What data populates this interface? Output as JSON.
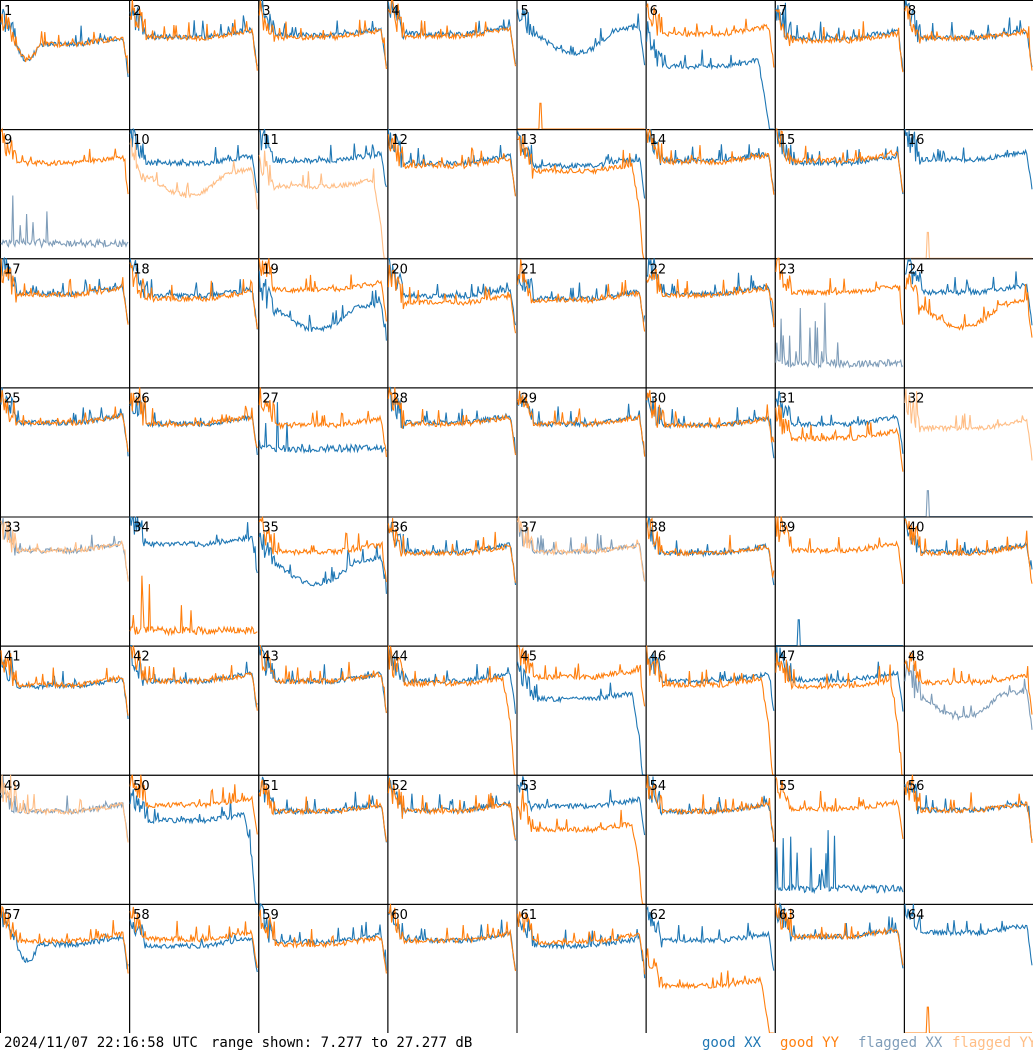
{
  "footer": {
    "timestamp": "2024/11/07 22:16:58 UTC",
    "range_text": "range shown: 7.277 to 27.277 dB",
    "legend": [
      {
        "label": "good XX",
        "color": "#1f77b4"
      },
      {
        "label": "good YY",
        "color": "#ff7f0e"
      },
      {
        "label": "flagged XX",
        "color": "#7f9db9"
      },
      {
        "label": "flagged YY",
        "color": "#ffbe86"
      }
    ]
  },
  "chart_data": {
    "type": "line",
    "grid_rows": 8,
    "grid_cols": 8,
    "y_range_db": [
      7.277,
      27.277
    ],
    "colors": {
      "good_xx": "#1f77b4",
      "good_yy": "#ff7f0e",
      "flagged_xx": "#7f9db9",
      "flagged_yy": "#ffbe86"
    },
    "panels": [
      {
        "id": "1",
        "xx": "good",
        "yy": "good",
        "xx_style": "dip",
        "yy_style": "dip",
        "xx_level": 20.4,
        "yy_level": 20.4
      },
      {
        "id": "2",
        "xx": "good",
        "yy": "good",
        "xx_style": "normal",
        "yy_style": "normal",
        "xx_level": 21.6,
        "yy_level": 21.4
      },
      {
        "id": "3",
        "xx": "good",
        "yy": "good",
        "xx_style": "normal",
        "yy_style": "normal",
        "xx_level": 21.8,
        "yy_level": 21.5
      },
      {
        "id": "4",
        "xx": "good",
        "yy": "good",
        "xx_style": "normal",
        "yy_style": "normal",
        "xx_level": 22.0,
        "yy_level": 21.7
      },
      {
        "id": "5",
        "xx": "good",
        "yy": "good",
        "xx_style": "sag",
        "yy_style": "spike",
        "xx_level": 22.0,
        "yy_level": 8.0
      },
      {
        "id": "6",
        "xx": "good",
        "yy": "good",
        "xx_style": "lowdrop",
        "yy_style": "normal",
        "xx_level": 17.0,
        "yy_level": 22.0
      },
      {
        "id": "7",
        "xx": "good",
        "yy": "good",
        "xx_style": "normal",
        "yy_style": "normal",
        "xx_level": 21.4,
        "yy_level": 21.0
      },
      {
        "id": "8",
        "xx": "good",
        "yy": "good",
        "xx_style": "normal",
        "yy_style": "normal",
        "xx_level": 21.4,
        "yy_level": 21.4
      },
      {
        "id": "9",
        "xx": "flagged",
        "yy": "good",
        "xx_style": "bursty",
        "yy_style": "normal",
        "xx_level": 9.0,
        "yy_level": 22.0
      },
      {
        "id": "10",
        "xx": "good",
        "yy": "flagged",
        "xx_style": "normal",
        "yy_style": "sag",
        "xx_level": 22.0,
        "yy_level": 20.0
      },
      {
        "id": "11",
        "xx": "good",
        "yy": "flagged",
        "xx_style": "normal",
        "yy_style": "drop",
        "xx_level": 22.4,
        "yy_level": 18.4
      },
      {
        "id": "12",
        "xx": "good",
        "yy": "good",
        "xx_style": "normal",
        "yy_style": "normal",
        "xx_level": 22.0,
        "yy_level": 21.6
      },
      {
        "id": "13",
        "xx": "good",
        "yy": "good",
        "xx_style": "normal",
        "yy_style": "drop",
        "xx_level": 21.6,
        "yy_level": 20.8
      },
      {
        "id": "14",
        "xx": "good",
        "yy": "good",
        "xx_style": "normal",
        "yy_style": "normal",
        "xx_level": 22.4,
        "yy_level": 22.2
      },
      {
        "id": "15",
        "xx": "good",
        "yy": "good",
        "xx_style": "normal",
        "yy_style": "normal",
        "xx_level": 22.0,
        "yy_level": 22.4
      },
      {
        "id": "16",
        "xx": "good",
        "yy": "flagged",
        "xx_style": "normal",
        "yy_style": "spike",
        "xx_level": 22.6,
        "yy_level": 8.0
      },
      {
        "id": "17",
        "xx": "good",
        "yy": "good",
        "xx_style": "normal",
        "yy_style": "normal",
        "xx_level": 21.8,
        "yy_level": 21.6
      },
      {
        "id": "18",
        "xx": "good",
        "yy": "good",
        "xx_style": "normal",
        "yy_style": "normal",
        "xx_level": 21.4,
        "yy_level": 21.0
      },
      {
        "id": "19",
        "xx": "good",
        "yy": "good",
        "xx_style": "sag",
        "yy_style": "normal",
        "xx_level": 19.2,
        "yy_level": 22.4
      },
      {
        "id": "20",
        "xx": "good",
        "yy": "good",
        "xx_style": "normal",
        "yy_style": "normal",
        "xx_level": 21.4,
        "yy_level": 20.4
      },
      {
        "id": "21",
        "xx": "good",
        "yy": "good",
        "xx_style": "normal",
        "yy_style": "normal",
        "xx_level": 21.0,
        "yy_level": 20.8
      },
      {
        "id": "22",
        "xx": "good",
        "yy": "good",
        "xx_style": "normal",
        "yy_style": "normal",
        "xx_level": 21.8,
        "yy_level": 21.6
      },
      {
        "id": "23",
        "xx": "flagged",
        "yy": "good",
        "xx_style": "bursty",
        "yy_style": "normal",
        "xx_level": 10.4,
        "yy_level": 22.0
      },
      {
        "id": "24",
        "xx": "good",
        "yy": "good",
        "xx_style": "normal",
        "yy_style": "sag",
        "xx_level": 22.0,
        "yy_level": 19.6
      },
      {
        "id": "25",
        "xx": "good",
        "yy": "good",
        "xx_style": "normal",
        "yy_style": "normal",
        "xx_level": 21.8,
        "yy_level": 21.8
      },
      {
        "id": "26",
        "xx": "good",
        "yy": "good",
        "xx_style": "normal",
        "yy_style": "normal",
        "xx_level": 21.6,
        "yy_level": 21.6
      },
      {
        "id": "27",
        "xx": "good",
        "yy": "good",
        "xx_style": "bursty",
        "yy_style": "normal",
        "xx_level": 17.2,
        "yy_level": 21.4
      },
      {
        "id": "28",
        "xx": "good",
        "yy": "good",
        "xx_style": "normal",
        "yy_style": "normal",
        "xx_level": 21.8,
        "yy_level": 21.6
      },
      {
        "id": "29",
        "xx": "good",
        "yy": "good",
        "xx_style": "normal",
        "yy_style": "normal",
        "xx_level": 21.6,
        "yy_level": 21.6
      },
      {
        "id": "30",
        "xx": "good",
        "yy": "good",
        "xx_style": "normal",
        "yy_style": "normal",
        "xx_level": 21.4,
        "yy_level": 21.4
      },
      {
        "id": "31",
        "xx": "good",
        "yy": "good",
        "xx_style": "normal",
        "yy_style": "normal",
        "xx_level": 21.6,
        "yy_level": 19.4
      },
      {
        "id": "32",
        "xx": "flagged",
        "yy": "flagged",
        "xx_style": "spike",
        "yy_style": "normal",
        "xx_level": 8.0,
        "yy_level": 21.0
      },
      {
        "id": "33",
        "xx": "flagged",
        "yy": "flagged",
        "xx_style": "normal",
        "yy_style": "normal",
        "xx_level": 22.0,
        "yy_level": 22.0
      },
      {
        "id": "34",
        "xx": "good",
        "yy": "good",
        "xx_style": "normal",
        "yy_style": "bursty",
        "xx_level": 23.0,
        "yy_level": 9.0
      },
      {
        "id": "35",
        "xx": "good",
        "yy": "good",
        "xx_style": "sag",
        "yy_style": "normal",
        "xx_level": 19.8,
        "yy_level": 21.8
      },
      {
        "id": "36",
        "xx": "good",
        "yy": "good",
        "xx_style": "normal",
        "yy_style": "normal",
        "xx_level": 21.8,
        "yy_level": 21.6
      },
      {
        "id": "37",
        "xx": "flagged",
        "yy": "flagged",
        "xx_style": "normal",
        "yy_style": "normal",
        "xx_level": 21.8,
        "yy_level": 21.8
      },
      {
        "id": "38",
        "xx": "good",
        "yy": "good",
        "xx_style": "normal",
        "yy_style": "normal",
        "xx_level": 21.6,
        "yy_level": 21.6
      },
      {
        "id": "39",
        "xx": "good",
        "yy": "good",
        "xx_style": "spike",
        "yy_style": "normal",
        "xx_level": 8.0,
        "yy_level": 22.0
      },
      {
        "id": "40",
        "xx": "good",
        "yy": "good",
        "xx_style": "normal",
        "yy_style": "normal",
        "xx_level": 21.8,
        "yy_level": 21.6
      },
      {
        "id": "41",
        "xx": "good",
        "yy": "good",
        "xx_style": "normal",
        "yy_style": "normal",
        "xx_level": 21.0,
        "yy_level": 21.2
      },
      {
        "id": "42",
        "xx": "good",
        "yy": "good",
        "xx_style": "normal",
        "yy_style": "normal",
        "xx_level": 21.8,
        "yy_level": 21.8
      },
      {
        "id": "43",
        "xx": "good",
        "yy": "good",
        "xx_style": "normal",
        "yy_style": "normal",
        "xx_level": 21.8,
        "yy_level": 21.8
      },
      {
        "id": "44",
        "xx": "good",
        "yy": "good",
        "xx_style": "normal",
        "yy_style": "drop",
        "xx_level": 21.8,
        "yy_level": 21.4
      },
      {
        "id": "45",
        "xx": "good",
        "yy": "good",
        "xx_style": "drop",
        "yy_style": "normal",
        "xx_level": 19.0,
        "yy_level": 22.4
      },
      {
        "id": "46",
        "xx": "good",
        "yy": "good",
        "xx_style": "normal",
        "yy_style": "drop",
        "xx_level": 21.8,
        "yy_level": 21.2
      },
      {
        "id": "47",
        "xx": "good",
        "yy": "good",
        "xx_style": "normal",
        "yy_style": "drop",
        "xx_level": 22.0,
        "yy_level": 21.0
      },
      {
        "id": "48",
        "xx": "flagged",
        "yy": "good",
        "xx_style": "sag",
        "yy_style": "normal",
        "xx_level": 19.2,
        "yy_level": 21.6
      },
      {
        "id": "49",
        "xx": "flagged",
        "yy": "flagged",
        "xx_style": "normal",
        "yy_style": "normal",
        "xx_level": 21.6,
        "yy_level": 21.6
      },
      {
        "id": "50",
        "xx": "good",
        "yy": "good",
        "xx_style": "drop",
        "yy_style": "normal",
        "xx_level": 20.2,
        "yy_level": 22.6
      },
      {
        "id": "51",
        "xx": "good",
        "yy": "good",
        "xx_style": "normal",
        "yy_style": "normal",
        "xx_level": 21.6,
        "yy_level": 21.6
      },
      {
        "id": "52",
        "xx": "good",
        "yy": "good",
        "xx_style": "normal",
        "yy_style": "normal",
        "xx_level": 21.8,
        "yy_level": 21.6
      },
      {
        "id": "53",
        "xx": "good",
        "yy": "good",
        "xx_style": "normal",
        "yy_style": "drop",
        "xx_level": 22.4,
        "yy_level": 18.8
      },
      {
        "id": "54",
        "xx": "good",
        "yy": "good",
        "xx_style": "normal",
        "yy_style": "normal",
        "xx_level": 21.6,
        "yy_level": 21.6
      },
      {
        "id": "55",
        "xx": "good",
        "yy": "good",
        "xx_style": "bursty",
        "yy_style": "normal",
        "xx_level": 9.0,
        "yy_level": 22.0
      },
      {
        "id": "56",
        "xx": "good",
        "yy": "good",
        "xx_style": "normal",
        "yy_style": "normal",
        "xx_level": 21.8,
        "yy_level": 21.8
      },
      {
        "id": "57",
        "xx": "good",
        "yy": "good",
        "xx_style": "dip",
        "yy_style": "normal",
        "xx_level": 21.0,
        "yy_level": 21.6
      },
      {
        "id": "58",
        "xx": "good",
        "yy": "good",
        "xx_style": "normal",
        "yy_style": "normal",
        "xx_level": 20.8,
        "yy_level": 21.8
      },
      {
        "id": "59",
        "xx": "good",
        "yy": "good",
        "xx_style": "normal",
        "yy_style": "normal",
        "xx_level": 21.4,
        "yy_level": 21.0
      },
      {
        "id": "60",
        "xx": "good",
        "yy": "good",
        "xx_style": "normal",
        "yy_style": "normal",
        "xx_level": 21.6,
        "yy_level": 21.6
      },
      {
        "id": "61",
        "xx": "good",
        "yy": "good",
        "xx_style": "normal",
        "yy_style": "normal",
        "xx_level": 20.8,
        "yy_level": 21.4
      },
      {
        "id": "62",
        "xx": "good",
        "yy": "good",
        "xx_style": "normal",
        "yy_style": "drop",
        "xx_level": 21.6,
        "yy_level": 14.6
      },
      {
        "id": "63",
        "xx": "good",
        "yy": "good",
        "xx_style": "normal",
        "yy_style": "normal",
        "xx_level": 22.2,
        "yy_level": 22.2
      },
      {
        "id": "64",
        "xx": "good",
        "yy": "good",
        "xx_style": "normal",
        "yy_style": "spike",
        "xx_level": 22.8,
        "yy_level": 8.0
      }
    ]
  }
}
